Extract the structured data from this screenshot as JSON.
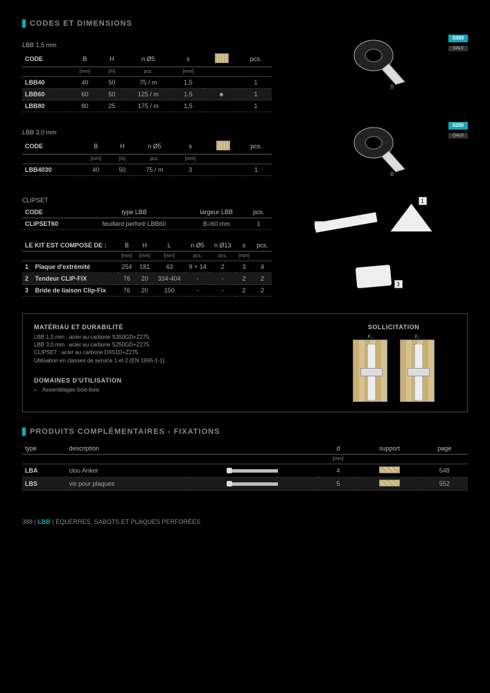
{
  "section_codes": "CODES ET DIMENSIONS",
  "section_prod": "PRODUITS COMPLÉMENTAIRES - FIXATIONS",
  "lbb15": {
    "title": "LBB 1,5 mm",
    "headers": [
      "CODE",
      "B",
      "H",
      "n Ø5",
      "s",
      "",
      "pcs."
    ],
    "units": [
      "",
      "[mm]",
      "[m]",
      "pcs.",
      "[mm]",
      "",
      ""
    ],
    "rows": [
      {
        "code": "LBB40",
        "b": "40",
        "h": "50",
        "n": "75 / m",
        "s": "1,5",
        "dot": "",
        "pcs": "1"
      },
      {
        "code": "LBB60",
        "b": "60",
        "h": "50",
        "n": "125 / m",
        "s": "1.5",
        "dot": "●",
        "pcs": "1",
        "hl": true
      },
      {
        "code": "LBB80",
        "b": "80",
        "h": "25",
        "n": "175 / m",
        "s": "1,5",
        "dot": "",
        "pcs": "1"
      }
    ],
    "badge": "S350",
    "badge_sub": "GALV",
    "fig_label": "B"
  },
  "lbb30": {
    "title": "LBB 3,0 mm",
    "headers": [
      "CODE",
      "B",
      "H",
      "n Ø5",
      "s",
      "",
      "pcs."
    ],
    "units": [
      "",
      "[mm]",
      "[m]",
      "pcs.",
      "[mm]",
      "",
      ""
    ],
    "rows": [
      {
        "code": "LBB4030",
        "b": "40",
        "h": "50",
        "n": "75 / m",
        "s": "3",
        "dot": "",
        "pcs": "1"
      }
    ],
    "badge": "S250",
    "badge_sub": "GALV",
    "fig_label": "B"
  },
  "clipset": {
    "title": "CLIPSET",
    "headers": [
      "CODE",
      "type LBB",
      "largeur LBB",
      "pcs."
    ],
    "rows": [
      {
        "code": "CLIPSET60",
        "type": "feuillard perforé LBB60",
        "larg": "B=60 mm",
        "pcs": "1"
      }
    ]
  },
  "kit": {
    "title": "LE KIT EST COMPOSÉ DE :",
    "headers": [
      "",
      "B",
      "H",
      "L",
      "n Ø5",
      "n Ø13",
      "s",
      "pcs."
    ],
    "units": [
      "",
      "[mm]",
      "[mm]",
      "[mm]",
      "pcs.",
      "pcs.",
      "[mm]",
      ""
    ],
    "rows": [
      {
        "i": "1",
        "name": "Plaque d'extrémité",
        "b": "254",
        "h": "181",
        "l": "43",
        "n5": "9 + 14",
        "n13": "2",
        "s": "3",
        "pcs": "4"
      },
      {
        "i": "2",
        "name": "Tendeur CLIP-FIX",
        "b": "76",
        "h": "20",
        "l": "334-404",
        "n5": "-",
        "n13": "-",
        "s": "2",
        "pcs": "2",
        "hl": true
      },
      {
        "i": "3",
        "name": "Bride de liaison Clip-Fix",
        "b": "76",
        "h": "20",
        "l": "150",
        "n5": "-",
        "n13": "-",
        "s": "2",
        "pcs": "2"
      }
    ]
  },
  "materiau": {
    "title": "MATÉRIAU ET DURABILITÉ",
    "l1": "LBB 1,5 mm : acier au carbone S350GD+Z275.",
    "l2": "LBB 3,0 mm : acier au carbone S250GD+Z275.",
    "l3": "CLIPSET : acier au carbone DX51D+Z275.",
    "l4": "Utilisation en classes de service 1 et 2 (EN 1995-1-1)."
  },
  "domaines": {
    "title": "DOMAINES D'UTILISATION",
    "item": "Assemblages bois-bois"
  },
  "sollic": {
    "title": "SOLLICITATION",
    "f": "F₁"
  },
  "prod": {
    "headers": [
      "type",
      "description",
      "",
      "d",
      "support",
      "page"
    ],
    "units": [
      "",
      "",
      "",
      "[mm]",
      "",
      ""
    ],
    "rows": [
      {
        "type": "LBA",
        "desc": "clou Anker",
        "d": "4",
        "page": "548"
      },
      {
        "type": "LBS",
        "desc": "vis pour plaques",
        "d": "5",
        "page": "552",
        "hl": true
      }
    ]
  },
  "footer": {
    "page": "388",
    "code": "LBB",
    "text": "ÉQUERRES, SABOTS  ET PLAQUES PERFORÉES"
  }
}
